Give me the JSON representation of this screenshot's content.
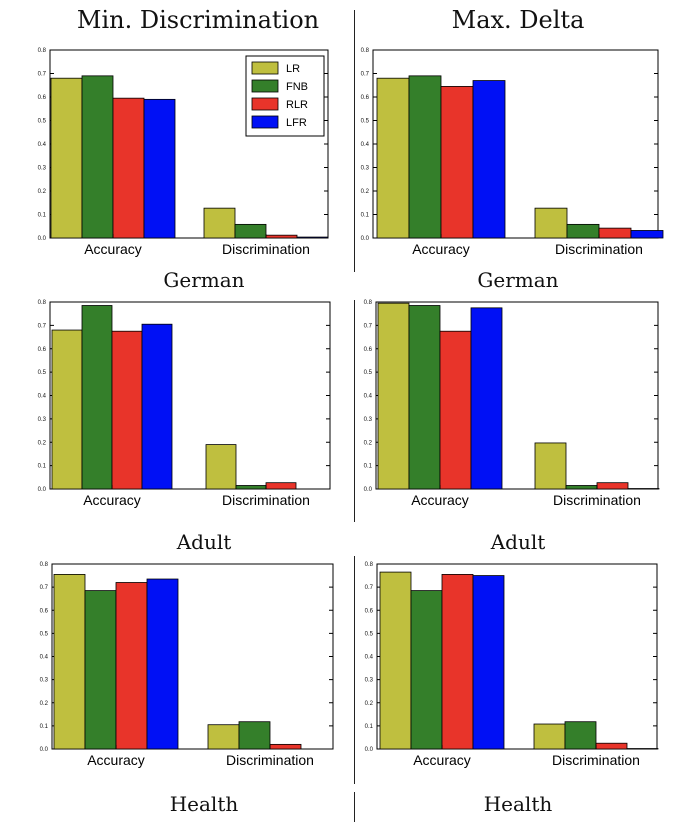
{
  "column_titles": [
    "Min. Discrimination",
    "Max. Delta"
  ],
  "captions": [
    "German",
    "German",
    "Adult",
    "Adult",
    "Health",
    "Health"
  ],
  "colors": {
    "LR": "#bfbf3f",
    "FNB": "#347f2a",
    "RLR": "#e8342a",
    "LFR": "#0010f5"
  },
  "chart_data": [
    {
      "type": "bar",
      "categories": [
        "Accuracy",
        "Discrimination"
      ],
      "ylim": [
        0,
        0.8
      ],
      "yticks": [
        "0.0",
        "0.1",
        "0.2",
        "0.3",
        "0.4",
        "0.5",
        "0.6",
        "0.7",
        "0.8"
      ],
      "series": [
        {
          "name": "LR",
          "values": [
            0.68,
            0.127
          ]
        },
        {
          "name": "FNB",
          "values": [
            0.69,
            0.058
          ]
        },
        {
          "name": "RLR",
          "values": [
            0.595,
            0.012
          ]
        },
        {
          "name": "LFR",
          "values": [
            0.59,
            0.004
          ]
        }
      ],
      "legend": "top-right"
    },
    {
      "type": "bar",
      "categories": [
        "Accuracy",
        "Discrimination"
      ],
      "ylim": [
        0,
        0.8
      ],
      "yticks": [
        "0.0",
        "0.1",
        "0.2",
        "0.3",
        "0.4",
        "0.5",
        "0.6",
        "0.7",
        "0.8"
      ],
      "series": [
        {
          "name": "LR",
          "values": [
            0.68,
            0.127
          ]
        },
        {
          "name": "FNB",
          "values": [
            0.69,
            0.058
          ]
        },
        {
          "name": "RLR",
          "values": [
            0.645,
            0.042
          ]
        },
        {
          "name": "LFR",
          "values": [
            0.67,
            0.032
          ]
        }
      ]
    },
    {
      "type": "bar",
      "categories": [
        "Accuracy",
        "Discrimination"
      ],
      "ylim": [
        0,
        0.8
      ],
      "yticks": [
        "0.0",
        "0.1",
        "0.2",
        "0.3",
        "0.4",
        "0.5",
        "0.6",
        "0.7",
        "0.8"
      ],
      "series": [
        {
          "name": "LR",
          "values": [
            0.68,
            0.19
          ]
        },
        {
          "name": "FNB",
          "values": [
            0.785,
            0.015
          ]
        },
        {
          "name": "RLR",
          "values": [
            0.675,
            0.027
          ]
        },
        {
          "name": "LFR",
          "values": [
            0.705,
            0.0
          ]
        }
      ]
    },
    {
      "type": "bar",
      "categories": [
        "Accuracy",
        "Discrimination"
      ],
      "ylim": [
        0,
        0.8
      ],
      "yticks": [
        "0.0",
        "0.1",
        "0.2",
        "0.3",
        "0.4",
        "0.5",
        "0.6",
        "0.7",
        "0.8"
      ],
      "series": [
        {
          "name": "LR",
          "values": [
            0.795,
            0.197
          ]
        },
        {
          "name": "FNB",
          "values": [
            0.785,
            0.015
          ]
        },
        {
          "name": "RLR",
          "values": [
            0.675,
            0.027
          ]
        },
        {
          "name": "LFR",
          "values": [
            0.775,
            0.002
          ]
        }
      ]
    },
    {
      "type": "bar",
      "categories": [
        "Accuracy",
        "Discrimination"
      ],
      "ylim": [
        0,
        0.8
      ],
      "yticks": [
        "0.0",
        "0.1",
        "0.2",
        "0.3",
        "0.4",
        "0.5",
        "0.6",
        "0.7",
        "0.8"
      ],
      "series": [
        {
          "name": "LR",
          "values": [
            0.755,
            0.105
          ]
        },
        {
          "name": "FNB",
          "values": [
            0.685,
            0.118
          ]
        },
        {
          "name": "RLR",
          "values": [
            0.72,
            0.02
          ]
        },
        {
          "name": "LFR",
          "values": [
            0.735,
            0.0
          ]
        }
      ]
    },
    {
      "type": "bar",
      "categories": [
        "Accuracy",
        "Discrimination"
      ],
      "ylim": [
        0,
        0.8
      ],
      "yticks": [
        "0.0",
        "0.1",
        "0.2",
        "0.3",
        "0.4",
        "0.5",
        "0.6",
        "0.7",
        "0.8"
      ],
      "series": [
        {
          "name": "LR",
          "values": [
            0.765,
            0.108
          ]
        },
        {
          "name": "FNB",
          "values": [
            0.685,
            0.118
          ]
        },
        {
          "name": "RLR",
          "values": [
            0.755,
            0.025
          ]
        },
        {
          "name": "LFR",
          "values": [
            0.75,
            0.002
          ]
        }
      ]
    }
  ]
}
